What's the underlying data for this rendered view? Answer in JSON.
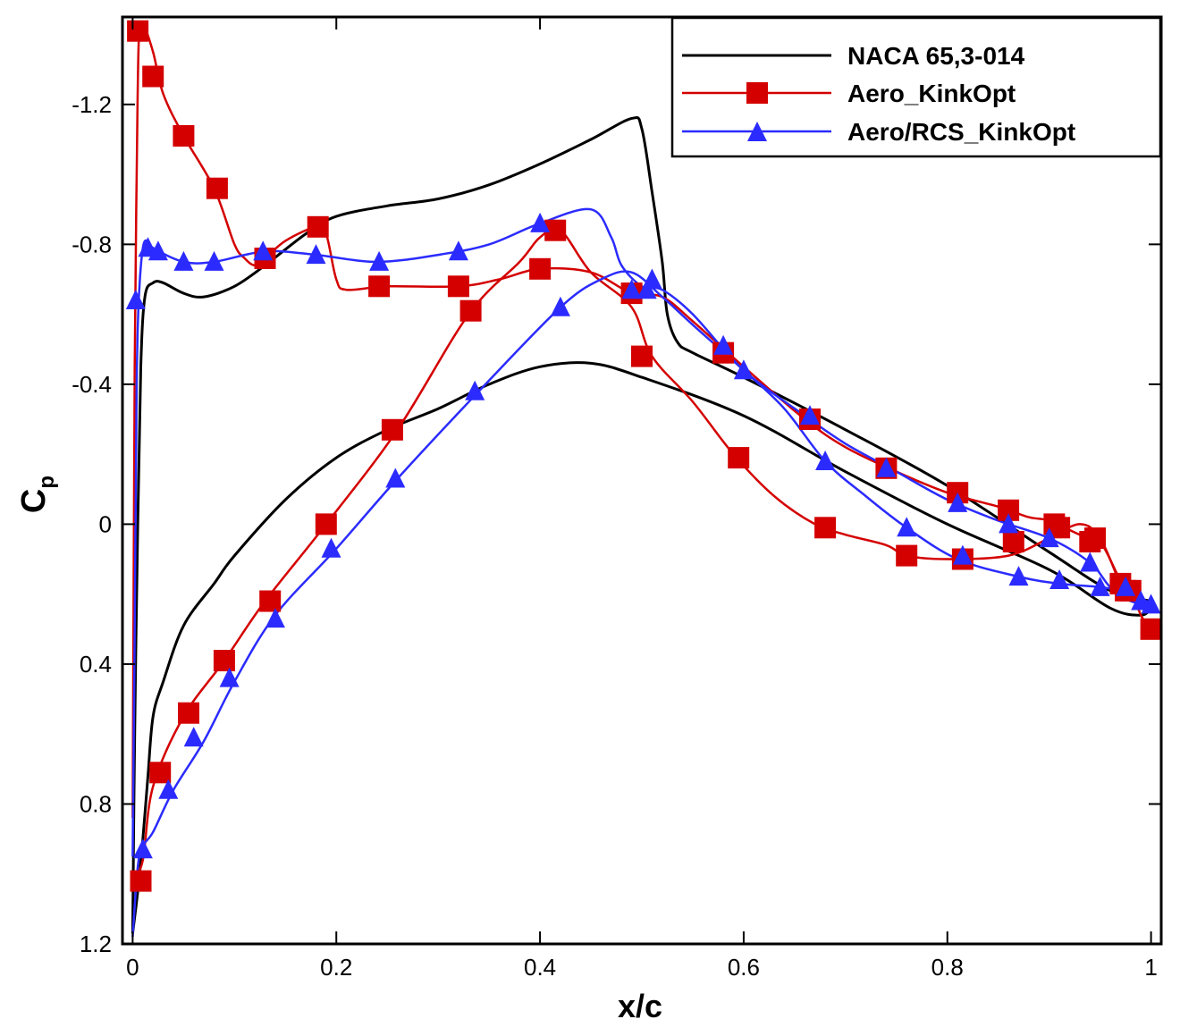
{
  "chart_data": {
    "type": "line",
    "title": "",
    "xlabel": "x/c",
    "ylabel": "C",
    "ylabel_subscript": "p",
    "xlim": [
      -0.01,
      1.01
    ],
    "ylim": [
      1.2,
      -1.45
    ],
    "y_inverted": true,
    "grid": false,
    "legend_position": "top-right",
    "x_ticks": [
      {
        "value": 0,
        "label": "0"
      },
      {
        "value": 0.2,
        "label": "0.2"
      },
      {
        "value": 0.4,
        "label": "0.4"
      },
      {
        "value": 0.6,
        "label": "0.6"
      },
      {
        "value": 0.8,
        "label": "0.8"
      },
      {
        "value": 1,
        "label": "1"
      }
    ],
    "y_ticks": [
      {
        "value": -1.2,
        "label": "-1.2"
      },
      {
        "value": -0.8,
        "label": "-0.8"
      },
      {
        "value": -0.4,
        "label": "-0.4"
      },
      {
        "value": 0,
        "label": "0"
      },
      {
        "value": 0.4,
        "label": "0.4"
      },
      {
        "value": 0.8,
        "label": "0.8"
      },
      {
        "value": 1.2,
        "label": "1.2"
      }
    ],
    "series": [
      {
        "name": "NACA 65,3-014",
        "color": "#000000",
        "marker": "none",
        "curves": [
          [
            [
              0.0,
              1.17
            ],
            [
              0.002,
              0.6
            ],
            [
              0.005,
              0.0
            ],
            [
              0.008,
              -0.45
            ],
            [
              0.012,
              -0.65
            ],
            [
              0.02,
              -0.69
            ],
            [
              0.03,
              -0.69
            ],
            [
              0.05,
              -0.66
            ],
            [
              0.07,
              -0.65
            ],
            [
              0.1,
              -0.68
            ],
            [
              0.13,
              -0.74
            ],
            [
              0.17,
              -0.83
            ],
            [
              0.2,
              -0.88
            ],
            [
              0.25,
              -0.91
            ],
            [
              0.3,
              -0.93
            ],
            [
              0.35,
              -0.97
            ],
            [
              0.4,
              -1.03
            ],
            [
              0.45,
              -1.1
            ],
            [
              0.49,
              -1.16
            ],
            [
              0.5,
              -1.13
            ],
            [
              0.51,
              -0.95
            ],
            [
              0.52,
              -0.75
            ],
            [
              0.525,
              -0.6
            ],
            [
              0.535,
              -0.52
            ],
            [
              0.55,
              -0.49
            ],
            [
              0.6,
              -0.42
            ],
            [
              0.7,
              -0.27
            ],
            [
              0.8,
              -0.11
            ],
            [
              0.9,
              0.08
            ],
            [
              0.96,
              0.19
            ],
            [
              1.0,
              0.22
            ]
          ],
          [
            [
              0.0,
              1.17
            ],
            [
              0.005,
              1.05
            ],
            [
              0.01,
              0.9
            ],
            [
              0.015,
              0.72
            ],
            [
              0.02,
              0.55
            ],
            [
              0.03,
              0.45
            ],
            [
              0.05,
              0.29
            ],
            [
              0.08,
              0.17
            ],
            [
              0.1,
              0.09
            ],
            [
              0.15,
              -0.07
            ],
            [
              0.2,
              -0.19
            ],
            [
              0.25,
              -0.27
            ],
            [
              0.3,
              -0.33
            ],
            [
              0.35,
              -0.4
            ],
            [
              0.4,
              -0.45
            ],
            [
              0.45,
              -0.46
            ],
            [
              0.5,
              -0.42
            ],
            [
              0.6,
              -0.31
            ],
            [
              0.7,
              -0.15
            ],
            [
              0.8,
              0.0
            ],
            [
              0.9,
              0.13
            ],
            [
              0.96,
              0.24
            ],
            [
              0.99,
              0.26
            ],
            [
              1.0,
              0.24
            ]
          ]
        ]
      },
      {
        "name": "Aero_KinkOpt",
        "color": "#d40000",
        "marker": "square",
        "curves": [
          [
            [
              0.0,
              0.84
            ],
            [
              0.002,
              -0.45
            ],
            [
              0.004,
              -1.0
            ],
            [
              0.006,
              -1.38
            ],
            [
              0.01,
              -1.43
            ],
            [
              0.02,
              -1.35
            ],
            [
              0.03,
              -1.23
            ],
            [
              0.05,
              -1.11
            ],
            [
              0.08,
              -0.96
            ],
            [
              0.1,
              -0.8
            ],
            [
              0.11,
              -0.76
            ],
            [
              0.12,
              -0.74
            ],
            [
              0.13,
              -0.76
            ],
            [
              0.15,
              -0.81
            ],
            [
              0.18,
              -0.85
            ],
            [
              0.19,
              -0.83
            ],
            [
              0.2,
              -0.7
            ],
            [
              0.21,
              -0.67
            ],
            [
              0.25,
              -0.68
            ],
            [
              0.32,
              -0.68
            ],
            [
              0.36,
              -0.7
            ],
            [
              0.4,
              -0.73
            ],
            [
              0.45,
              -0.72
            ],
            [
              0.49,
              -0.66
            ],
            [
              0.52,
              -0.65
            ],
            [
              0.55,
              -0.58
            ],
            [
              0.6,
              -0.45
            ],
            [
              0.66,
              -0.3
            ],
            [
              0.7,
              -0.22
            ],
            [
              0.75,
              -0.15
            ],
            [
              0.8,
              -0.09
            ],
            [
              0.85,
              -0.05
            ],
            [
              0.88,
              -0.02
            ],
            [
              0.9,
              -0.01
            ],
            [
              0.93,
              0.03
            ],
            [
              0.95,
              0.05
            ],
            [
              0.97,
              0.16
            ],
            [
              0.98,
              0.18
            ],
            [
              0.99,
              0.26
            ],
            [
              1.0,
              0.3
            ]
          ],
          [
            [
              0.0,
              1.02
            ],
            [
              0.01,
              0.96
            ],
            [
              0.02,
              0.75
            ],
            [
              0.05,
              0.55
            ],
            [
              0.09,
              0.39
            ],
            [
              0.13,
              0.22
            ],
            [
              0.19,
              0.0
            ],
            [
              0.26,
              -0.27
            ],
            [
              0.33,
              -0.6
            ],
            [
              0.38,
              -0.75
            ],
            [
              0.4,
              -0.82
            ],
            [
              0.42,
              -0.84
            ],
            [
              0.45,
              -0.72
            ],
            [
              0.49,
              -0.62
            ],
            [
              0.51,
              -0.48
            ],
            [
              0.55,
              -0.35
            ],
            [
              0.59,
              -0.2
            ],
            [
              0.63,
              -0.08
            ],
            [
              0.67,
              0.0
            ],
            [
              0.7,
              0.03
            ],
            [
              0.74,
              0.06
            ],
            [
              0.76,
              0.09
            ],
            [
              0.8,
              0.1
            ],
            [
              0.86,
              0.09
            ],
            [
              0.9,
              0.04
            ],
            [
              0.93,
              0.0
            ],
            [
              0.95,
              0.04
            ],
            [
              0.97,
              0.17
            ],
            [
              0.98,
              0.2
            ],
            [
              1.0,
              0.25
            ]
          ]
        ],
        "markers": [
          [
            0.005,
            -1.41
          ],
          [
            0.02,
            -1.28
          ],
          [
            0.05,
            -1.11
          ],
          [
            0.083,
            -0.96
          ],
          [
            0.13,
            -0.76
          ],
          [
            0.182,
            -0.85
          ],
          [
            0.242,
            -0.68
          ],
          [
            0.32,
            -0.68
          ],
          [
            0.4,
            -0.73
          ],
          [
            0.49,
            -0.66
          ],
          [
            0.58,
            -0.49
          ],
          [
            0.665,
            -0.3
          ],
          [
            0.74,
            -0.16
          ],
          [
            0.81,
            -0.09
          ],
          [
            0.86,
            -0.04
          ],
          [
            0.905,
            0.0
          ],
          [
            0.945,
            0.04
          ],
          [
            0.97,
            0.17
          ],
          [
            0.98,
            0.19
          ],
          [
            1.0,
            0.3
          ],
          [
            0.008,
            1.02
          ],
          [
            0.027,
            0.71
          ],
          [
            0.055,
            0.54
          ],
          [
            0.09,
            0.39
          ],
          [
            0.135,
            0.22
          ],
          [
            0.19,
            0.0
          ],
          [
            0.255,
            -0.27
          ],
          [
            0.332,
            -0.61
          ],
          [
            0.415,
            -0.84
          ],
          [
            0.5,
            -0.48
          ],
          [
            0.595,
            -0.19
          ],
          [
            0.68,
            0.01
          ],
          [
            0.76,
            0.09
          ],
          [
            0.815,
            0.1
          ],
          [
            0.865,
            0.05
          ],
          [
            0.91,
            0.01
          ],
          [
            0.94,
            0.05
          ],
          [
            0.975,
            0.19
          ]
        ]
      },
      {
        "name": "Aero/RCS_KinkOpt",
        "color": "#2b2bff",
        "marker": "triangle",
        "curves": [
          [
            [
              0.0,
              0.95
            ],
            [
              0.002,
              0.3
            ],
            [
              0.004,
              -0.4
            ],
            [
              0.006,
              -0.64
            ],
            [
              0.01,
              -0.79
            ],
            [
              0.015,
              -0.81
            ],
            [
              0.02,
              -0.79
            ],
            [
              0.05,
              -0.75
            ],
            [
              0.08,
              -0.75
            ],
            [
              0.13,
              -0.78
            ],
            [
              0.18,
              -0.77
            ],
            [
              0.24,
              -0.75
            ],
            [
              0.3,
              -0.77
            ],
            [
              0.35,
              -0.8
            ],
            [
              0.4,
              -0.86
            ],
            [
              0.45,
              -0.9
            ],
            [
              0.47,
              -0.82
            ],
            [
              0.48,
              -0.74
            ],
            [
              0.5,
              -0.68
            ],
            [
              0.52,
              -0.67
            ],
            [
              0.55,
              -0.6
            ],
            [
              0.6,
              -0.44
            ],
            [
              0.66,
              -0.31
            ],
            [
              0.7,
              -0.23
            ],
            [
              0.75,
              -0.15
            ],
            [
              0.8,
              -0.07
            ],
            [
              0.85,
              -0.01
            ],
            [
              0.9,
              0.04
            ],
            [
              0.94,
              0.11
            ],
            [
              0.96,
              0.18
            ],
            [
              0.98,
              0.22
            ],
            [
              1.0,
              0.23
            ]
          ],
          [
            [
              0.0,
              1.18
            ],
            [
              0.005,
              0.98
            ],
            [
              0.01,
              0.92
            ],
            [
              0.02,
              0.88
            ],
            [
              0.04,
              0.76
            ],
            [
              0.07,
              0.62
            ],
            [
              0.1,
              0.45
            ],
            [
              0.14,
              0.26
            ],
            [
              0.2,
              0.07
            ],
            [
              0.26,
              -0.13
            ],
            [
              0.34,
              -0.38
            ],
            [
              0.42,
              -0.62
            ],
            [
              0.46,
              -0.7
            ],
            [
              0.49,
              -0.72
            ],
            [
              0.52,
              -0.65
            ],
            [
              0.55,
              -0.57
            ],
            [
              0.6,
              -0.44
            ],
            [
              0.64,
              -0.33
            ],
            [
              0.68,
              -0.18
            ],
            [
              0.72,
              -0.08
            ],
            [
              0.76,
              0.01
            ],
            [
              0.81,
              0.1
            ],
            [
              0.87,
              0.15
            ],
            [
              0.91,
              0.17
            ],
            [
              0.95,
              0.18
            ],
            [
              0.97,
              0.19
            ],
            [
              0.985,
              0.2
            ],
            [
              1.0,
              0.23
            ]
          ]
        ],
        "markers": [
          [
            0.003,
            -0.64
          ],
          [
            0.015,
            -0.79
          ],
          [
            0.025,
            -0.78
          ],
          [
            0.05,
            -0.75
          ],
          [
            0.08,
            -0.75
          ],
          [
            0.128,
            -0.78
          ],
          [
            0.18,
            -0.77
          ],
          [
            0.242,
            -0.75
          ],
          [
            0.32,
            -0.78
          ],
          [
            0.4,
            -0.86
          ],
          [
            0.49,
            -0.67
          ],
          [
            0.51,
            -0.7
          ],
          [
            0.58,
            -0.51
          ],
          [
            0.6,
            -0.44
          ],
          [
            0.665,
            -0.31
          ],
          [
            0.74,
            -0.16
          ],
          [
            0.81,
            -0.06
          ],
          [
            0.86,
            0.0
          ],
          [
            0.9,
            0.04
          ],
          [
            0.94,
            0.11
          ],
          [
            0.975,
            0.18
          ],
          [
            0.99,
            0.22
          ],
          [
            1.0,
            0.23
          ],
          [
            0.01,
            0.93
          ],
          [
            0.035,
            0.76
          ],
          [
            0.06,
            0.61
          ],
          [
            0.095,
            0.44
          ],
          [
            0.14,
            0.27
          ],
          [
            0.195,
            0.07
          ],
          [
            0.258,
            -0.13
          ],
          [
            0.336,
            -0.38
          ],
          [
            0.42,
            -0.62
          ],
          [
            0.505,
            -0.67
          ],
          [
            0.68,
            -0.18
          ],
          [
            0.76,
            0.01
          ],
          [
            0.815,
            0.09
          ],
          [
            0.87,
            0.15
          ],
          [
            0.91,
            0.16
          ],
          [
            0.95,
            0.18
          ]
        ]
      }
    ]
  }
}
